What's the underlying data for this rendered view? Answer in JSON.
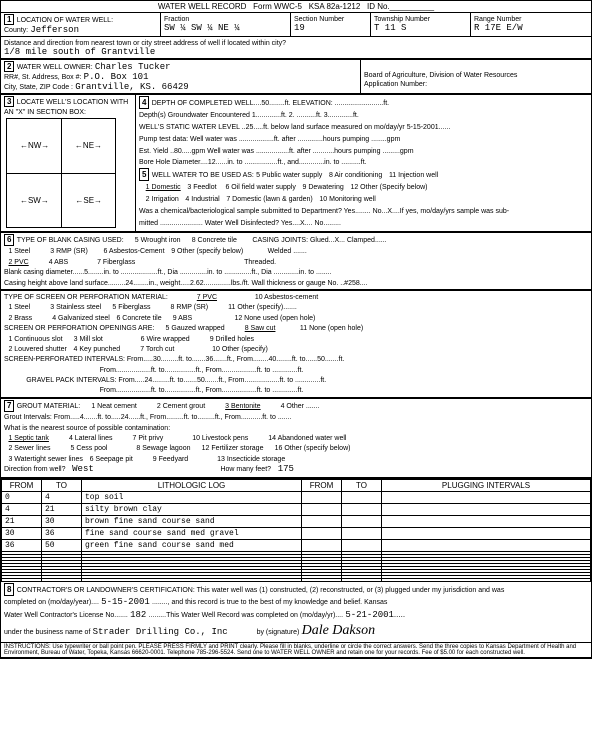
{
  "form_header": {
    "title": "WATER WELL RECORD",
    "form_no": "Form WWC-5",
    "ksa": "KSA 82a-1212",
    "id": "ID No."
  },
  "loc": {
    "county_label": "County:",
    "county": "Jefferson",
    "fraction_label": "Fraction",
    "fraction": "SW ¼ SW ¼ NE ¼",
    "section_label": "Section Number",
    "section": "19",
    "township_label": "Township Number",
    "township": "T 11 S",
    "range_label": "Range Number",
    "range": "R 17E E/W",
    "dist_label": "Distance and direction from nearest town or city street address of well if located within city?",
    "dist": "1/8 mile south of Grantville"
  },
  "owner": {
    "label": "WATER WELL OWNER:",
    "name": "Charles Tucker",
    "addr_label": "RR#, St. Address, Box #:",
    "addr": "P.O. Box 101",
    "city_label": "City, State, ZIP Code :",
    "city": "Grantville, KS. 66429",
    "board": "Board of Agriculture, Division of Water Resources",
    "app": "Application Number:"
  },
  "depth": {
    "loc_label": "LOCATE WELL'S LOCATION WITH",
    "d4": "4",
    "completed": "DEPTH OF COMPLETED WELL....50........ft. ELEVATION: .........................ft.",
    "x_label": "AN \"X\" IN SECTION BOX:",
    "ground": "Depth(s) Groundwater Encountered    1.............ft. 2. ..........ft. 3.............ft.",
    "static": "WELL'S STATIC WATER LEVEL ..25.....ft. below land surface measured on mo/day/yr 5-15-2001......",
    "pump": "Pump test data: Well water was ..................ft. after .............hours pumping ........gpm",
    "yield": "Est. Yield ..80.....gpm   Well water was .................ft. after ...........hours pumping .........gpm",
    "bore": "Bore Hole Diameter....12......in. to .................ft., and.............in. to ..........ft.",
    "d5": "5",
    "use_label": "WELL WATER TO BE USED AS:",
    "use1": "1 Domestic",
    "use2": "2 Irrigation",
    "use3": "3 Feedlot",
    "use4": "4 Industrial",
    "use5": "5 Public water supply",
    "use6": "6 Oil field water supply",
    "use7": "7 Domestic (lawn & garden)",
    "use8": "8 Air conditioning",
    "use9": "9 Dewatering",
    "use10": "10 Monitoring well",
    "use11": "11 Injection well",
    "use12": "12 Other (Specify below)",
    "chem": "Was a chemical/bacteriological sample submitted to Department? Yes........ No...X....If yes, mo/day/yrs sample was sub-",
    "chem2": "mitted ...................... Water Well Disinfected? Yes....X.... No........."
  },
  "casing": {
    "d6": "6",
    "label": "TYPE OF BLANK CASING USED:",
    "c1": "1 Steel",
    "c2": "2 PVC",
    "c3": "3 RMP (SR)",
    "c4": "4 ABS",
    "c5": "5 Wrought iron",
    "c6": "6 Asbestos-Cement",
    "c7": "7 Fiberglass",
    "c8": "8 Concrete tile",
    "c9": "9 Other (specify below)",
    "joints": "CASING JOINTS: Glued...X... Clamped......",
    "joints2": "Welded .......",
    "joints3": "Threaded.",
    "dia": "Blank casing diameter......5........in. to ...................ft., Dia ..............in. to ..............ft., Dia .............in. to ........",
    "height": "Casing height above land surface.........24........in., weight.....2.62..............lbs./ft. Wall thickness or gauge No. ..#258...."
  },
  "screen": {
    "label": "TYPE OF SCREEN OR PERFORATION MATERIAL:",
    "s1": "1 Steel",
    "s2": "2 Brass",
    "s3": "3 Stainless steel",
    "s4": "4 Galvanized steel",
    "s5": "5 Fiberglass",
    "s6": "6 Concrete tile",
    "s7": "7 PVC",
    "s8": "8 RMP (SR)",
    "s9": "9 ABS",
    "s10": "10 Asbestos-cement",
    "s11": "11 Other (specify).......",
    "s12": "12 None used (open hole)",
    "open_label": "SCREEN OR PERFORATION OPENINGS ARE:",
    "o1": "1 Continuous slot",
    "o2": "2 Louvered shutter",
    "o3": "3 Mill slot",
    "o4": "4 Key punched",
    "o5": "5 Gauzed wrapped",
    "o6": "6 Wire wrapped",
    "o7": "7 Torch cut",
    "o8": "8 Saw cut",
    "o9": "9 Drilled holes",
    "o10": "10 Other (specify)",
    "o11": "11 None (open hole)",
    "perf": "SCREEN-PERFORATED INTERVALS: From.....30.........ft. to.......36.......ft., From........40........ft. to......50.......ft.",
    "perf2": "From..................ft. to................ft., From..................ft. to .............ft.",
    "gravel": "GRAVEL PACK INTERVALS: From.....24.........ft. to.......50.......ft., From..................ft. to .............ft.",
    "gravel2": "From..................ft. to................ft., From..................ft. to .............ft."
  },
  "grout": {
    "d7": "7",
    "label": "GROUT MATERIAL:",
    "g1": "1 Neat cement",
    "g2": "2 Cement grout",
    "g3": "3 Bentonite",
    "g4": "4 Other .......",
    "int": "Grout Intervals: From.....4.......ft. to.....24......ft., From.........ft. to.........ft., From...........ft. to .......",
    "contam": "What is the nearest source of possible contamination:",
    "p1": "1 Septic tank",
    "p2": "2 Sewer lines",
    "p3": "3 Watertight sewer lines",
    "p4": "4 Lateral lines",
    "p5": "5 Cess pool",
    "p6": "6 Seepage pit",
    "p7": "7 Pit privy",
    "p8": "8 Sewage lagoon",
    "p9": "9 Feedyard",
    "p10": "10 Livestock pens",
    "p11": "11 Fuel storage",
    "p12": "12 Fertilizer storage",
    "p13": "13 Insecticide storage",
    "p14": "14 Abandoned water well",
    "p15": "15 Oil well/Gas well",
    "p16": "16 Other (specify below)",
    "dir": "Direction from well?",
    "dir_val": "West",
    "feet": "How many feet?",
    "feet_val": "175"
  },
  "log": {
    "h_from": "FROM",
    "h_to": "TO",
    "h_lith": "LITHOLOGIC LOG",
    "h_from2": "FROM",
    "h_to2": "TO",
    "h_plug": "PLUGGING INTERVALS",
    "rows": [
      {
        "from": "0",
        "to": "4",
        "desc": "top soil"
      },
      {
        "from": "4",
        "to": "21",
        "desc": "silty brown clay"
      },
      {
        "from": "21",
        "to": "30",
        "desc": "brown fine sand course sand"
      },
      {
        "from": "30",
        "to": "36",
        "desc": "fine sand course sand med gravel"
      },
      {
        "from": "36",
        "to": "50",
        "desc": "green fine sand course sand med"
      }
    ]
  },
  "cert": {
    "d8": "8",
    "line1": "CONTRACTOR'S OR LANDOWNER'S CERTIFICATION: This water well was (1) constructed, (2) reconstructed, or (3) plugged under my jurisdiction and was",
    "line2a": "completed on (mo/day/year)....",
    "date1": "5-15-2001",
    "line2b": "........, and this record is true to the best of my knowledge and belief. Kansas",
    "line3a": "Water Well Contractor's License No.......",
    "lic": "182",
    "line3b": ".........This Water Well Record was completed on (mo/day/yr)....",
    "date2": "5-21-2001",
    "line4a": "under the business name of",
    "bus": "Strader Drilling Co., Inc",
    "line4b": "by (signature)",
    "sig": "Dale Dakson"
  },
  "instr": "INSTRUCTIONS: Use typewriter or ball point pen. PLEASE PRESS FIRMLY and PRINT clearly. Please fill in blanks, underline or circle the correct answers. Send the three copies to Kansas Department of Health and Environment, Bureau of Water, Topeka, Kansas 66620-0001. Telephone 785-296-5524. Send one to WATER WELL OWNER and retain one for your records. Fee of $5.00 for each constructed well."
}
